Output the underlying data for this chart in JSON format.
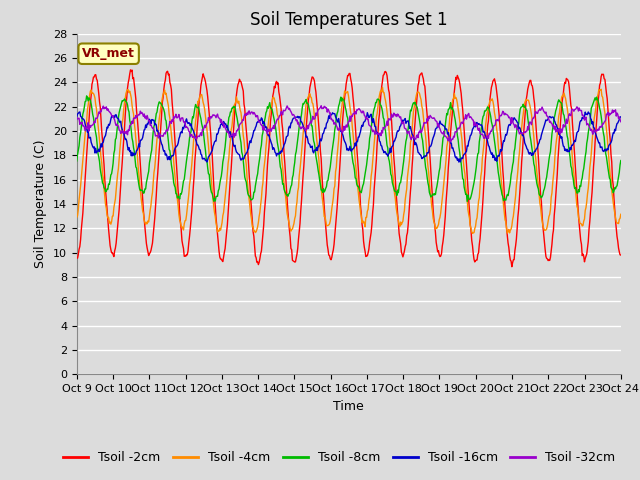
{
  "title": "Soil Temperatures Set 1",
  "xlabel": "Time",
  "ylabel": "Soil Temperature (C)",
  "ylim": [
    0,
    28
  ],
  "yticks": [
    0,
    2,
    4,
    6,
    8,
    10,
    12,
    14,
    16,
    18,
    20,
    22,
    24,
    26,
    28
  ],
  "xtick_labels": [
    "Oct 9",
    "Oct 10",
    "Oct 11",
    "Oct 12",
    "Oct 13",
    "Oct 14",
    "Oct 15",
    "Oct 16",
    "Oct 17",
    "Oct 18",
    "Oct 19",
    "Oct 20",
    "Oct 21",
    "Oct 22",
    "Oct 23",
    "Oct 24"
  ],
  "annotation_text": "VR_met",
  "annotation_color": "#8B0000",
  "line_colors": [
    "#FF0000",
    "#FF8C00",
    "#00BB00",
    "#0000CC",
    "#9900CC"
  ],
  "line_labels": [
    "Tsoil -2cm",
    "Tsoil -4cm",
    "Tsoil -8cm",
    "Tsoil -16cm",
    "Tsoil -32cm"
  ],
  "background_color": "#DCDCDC",
  "grid_color": "#FFFFFF",
  "n_days": 15,
  "points_per_day": 48,
  "base_temps": [
    17.0,
    17.5,
    18.5,
    19.5,
    20.8
  ],
  "amplitudes": [
    7.5,
    5.5,
    3.8,
    1.5,
    0.9
  ],
  "phase_shifts": [
    0.0,
    0.5,
    1.2,
    2.8,
    4.5
  ],
  "trend": [
    0.0,
    0.0,
    0.0,
    0.0,
    -0.02
  ],
  "title_fontsize": 12,
  "label_fontsize": 9,
  "tick_fontsize": 8,
  "legend_fontsize": 9
}
